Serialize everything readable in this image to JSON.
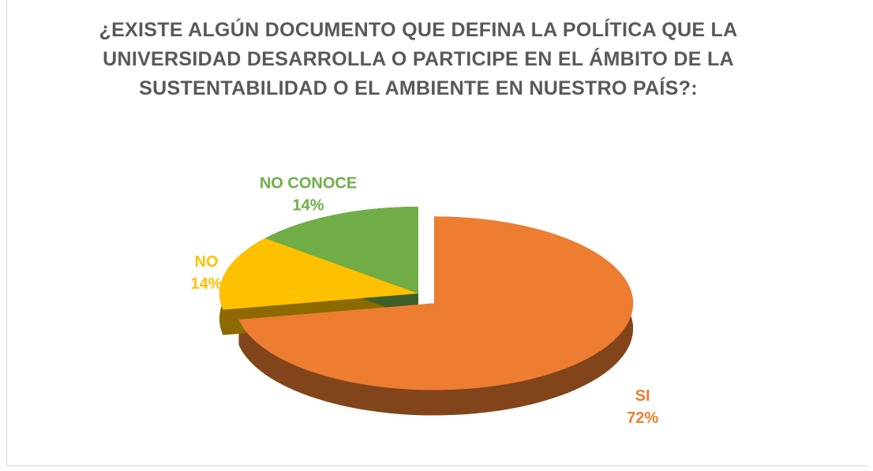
{
  "chart_data": {
    "type": "pie",
    "title": "¿EXISTE ALGÚN DOCUMENTO QUE DEFINA LA POLÍTICA QUE LA UNIVERSIDAD DESARROLLA O PARTICIPE EN EL ÁMBITO DE LA SUSTENTABILIDAD O EL AMBIENTE EN NUESTRO PAÍS?:",
    "categories": [
      "SI",
      "NO",
      "NO CONOCE"
    ],
    "values": [
      72,
      14,
      14
    ],
    "value_labels": [
      "72%",
      "14%",
      "14%"
    ],
    "colors": [
      "#ed7d31",
      "#ffc000",
      "#70ad47"
    ]
  }
}
